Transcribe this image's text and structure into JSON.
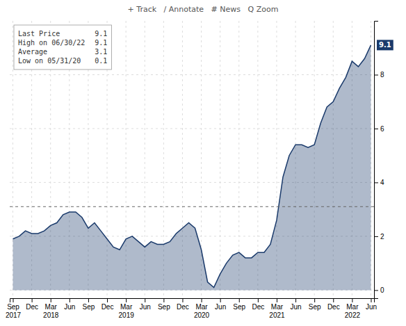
{
  "chart_data": {
    "type": "area",
    "title": "+ Track   / Annotate   # News   Q Zoom",
    "color": "#1a3a6b",
    "categories": [
      "Sep\n2017",
      null,
      null,
      "Dec",
      null,
      null,
      "Mar\n2018",
      null,
      null,
      "Jun",
      null,
      null,
      "Sep",
      null,
      null,
      "Dec",
      null,
      null,
      "Mar\n2019",
      null,
      null,
      "Jun",
      null,
      null,
      "Sep",
      null,
      null,
      "Dec",
      null,
      null,
      "Mar\n2020",
      null,
      null,
      "Jun",
      null,
      null,
      "Sep",
      null,
      null,
      "Dec",
      null,
      null,
      "Mar\n2021",
      null,
      null,
      "Jun",
      null,
      null,
      "Sep",
      null,
      null,
      "Dec",
      null,
      null,
      "Mar\n2022",
      null,
      null,
      "Jun"
    ],
    "values": [
      1.9,
      2.0,
      2.2,
      2.1,
      2.1,
      2.2,
      2.4,
      2.5,
      2.8,
      2.9,
      2.9,
      2.7,
      2.3,
      2.5,
      2.2,
      1.9,
      1.6,
      1.5,
      1.9,
      2.0,
      1.8,
      1.6,
      1.8,
      1.7,
      1.7,
      1.8,
      2.1,
      2.3,
      2.5,
      2.3,
      1.5,
      0.3,
      0.1,
      0.6,
      1.0,
      1.3,
      1.4,
      1.2,
      1.2,
      1.4,
      1.4,
      1.7,
      2.6,
      4.2,
      5.0,
      5.4,
      5.4,
      5.3,
      5.4,
      6.2,
      6.8,
      7.0,
      7.5,
      7.9,
      8.5,
      8.3,
      8.6,
      9.1
    ],
    "ylim": [
      -0.3,
      10.0
    ],
    "yticks": [
      0,
      2,
      4,
      6,
      8
    ],
    "grid": true,
    "average": 3.1,
    "last_price": 9.1,
    "annotations": [
      {
        "text": "Last Price",
        "value": 9.1
      },
      {
        "text": "High on 06/30/22",
        "value": 9.1
      },
      {
        "text": "Average",
        "value": 3.1
      },
      {
        "text": "Low on 05/31/20",
        "value": 0.1
      }
    ]
  }
}
